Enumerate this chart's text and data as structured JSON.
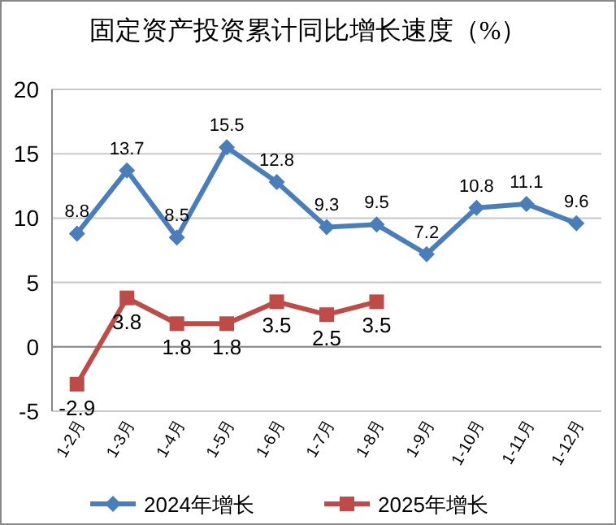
{
  "chart_data": {
    "type": "line",
    "title": "固定资产投资累计同比增长速度（%）",
    "categories": [
      "1-2月",
      "1-3月",
      "1-4月",
      "1-5月",
      "1-6月",
      "1-7月",
      "1-8月",
      "1-9月",
      "1-10月",
      "1-11月",
      "1-12月"
    ],
    "series": [
      {
        "name": "2024年增长",
        "color": "#4a7ebb",
        "marker": "diamond",
        "values": [
          8.8,
          13.7,
          8.5,
          15.5,
          12.8,
          9.3,
          9.5,
          7.2,
          10.8,
          11.1,
          9.6
        ]
      },
      {
        "name": "2025年增长",
        "color": "#be4b48",
        "marker": "square",
        "values": [
          -2.9,
          3.8,
          1.8,
          1.8,
          3.5,
          2.5,
          3.5,
          null,
          null,
          null,
          null
        ]
      }
    ],
    "ylim": [
      -5,
      20
    ],
    "yticks": [
      -5,
      0,
      5,
      10,
      15,
      20
    ],
    "grid": "y",
    "legend": "bottom",
    "data_labels": true
  }
}
